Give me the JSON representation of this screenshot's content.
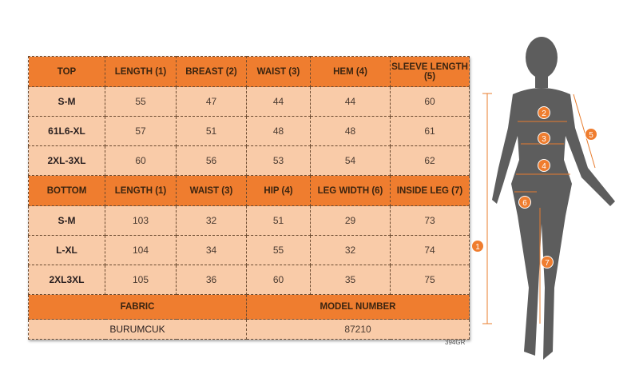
{
  "top": {
    "headers": [
      "TOP",
      "LENGTH (1)",
      "BREAST (2)",
      "WAIST (3)",
      "HEM (4)",
      "SLEEVE LENGTH (5)"
    ],
    "rows": [
      [
        "S-M",
        "55",
        "47",
        "44",
        "44",
        "60"
      ],
      [
        "61L6-XL",
        "57",
        "51",
        "48",
        "48",
        "61"
      ],
      [
        "2XL-3XL",
        "60",
        "56",
        "53",
        "54",
        "62"
      ]
    ]
  },
  "bottom": {
    "headers": [
      "BOTTOM",
      "LENGTH (1)",
      "WAIST (3)",
      "HIP (4)",
      "LEG WIDTH (6)",
      "INSIDE LEG (7)"
    ],
    "rows": [
      [
        "S-M",
        "103",
        "32",
        "51",
        "29",
        "73"
      ],
      [
        "L-XL",
        "104",
        "34",
        "55",
        "32",
        "74"
      ],
      [
        "2XL3XL",
        "105",
        "36",
        "60",
        "35",
        "75"
      ]
    ]
  },
  "footer": {
    "fabric_label": "FABRIC",
    "fabric_value": "BURUMCUK",
    "model_label": "MODEL NUMBER",
    "model_value": "87210"
  },
  "code": "394GR",
  "figure": {
    "markers": [
      "1",
      "2",
      "3",
      "4",
      "5",
      "6",
      "7"
    ]
  },
  "colors": {
    "header": "#ef7d2f",
    "cell": "#f9cba8",
    "silhouette": "#5a5a5a"
  }
}
